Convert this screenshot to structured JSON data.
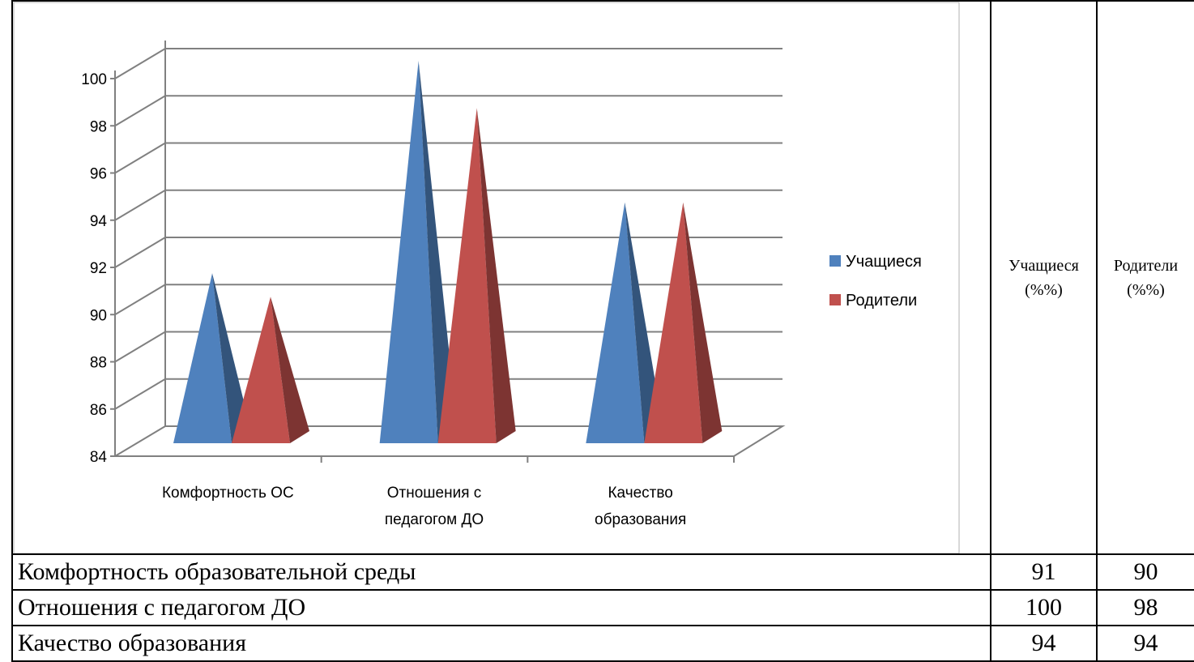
{
  "chart_data": {
    "type": "bar",
    "style": "3d-pyramid",
    "categories": [
      "Комфортность ОС",
      "Отношения с педагогом ДО",
      "Качество образования"
    ],
    "category_lines": [
      [
        "Комфортность ОС"
      ],
      [
        "Отношения с",
        "педагогом ДО"
      ],
      [
        "Качество",
        "образования"
      ]
    ],
    "series": [
      {
        "name": "Учащиеся",
        "values": [
          91,
          100,
          94
        ],
        "color": "#4F81BD"
      },
      {
        "name": "Родители",
        "values": [
          90,
          98,
          94
        ],
        "color": "#C0504D"
      }
    ],
    "yticks": [
      "84",
      "86",
      "88",
      "90",
      "92",
      "94",
      "96",
      "98",
      "100"
    ],
    "ylim": [
      84,
      100
    ],
    "grid": true,
    "legend": "right"
  },
  "table": {
    "headers": [
      "Учащиеся (%%)",
      "Родители (%%)"
    ],
    "header_lines": [
      [
        "Учащиеся",
        "(%%)"
      ],
      [
        "Родители",
        "(%%)"
      ]
    ],
    "rows": [
      {
        "label": "Комфортность образовательной среды",
        "values": [
          "91",
          "90"
        ]
      },
      {
        "label": "Отношения с педагогом ДО",
        "values": [
          "100",
          "98"
        ]
      },
      {
        "label": "Качество образования",
        "values": [
          "94",
          "94"
        ]
      }
    ]
  }
}
